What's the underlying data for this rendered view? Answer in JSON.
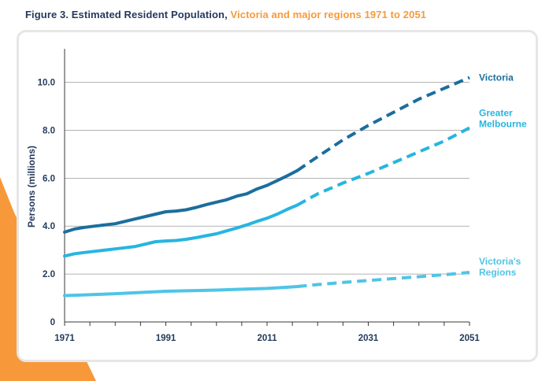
{
  "figure": {
    "title_prefix": "Figure 3. Estimated Resident Population, ",
    "title_highlight": "Victoria and major regions 1971 to 2051"
  },
  "colors": {
    "title_dark": "#243b5c",
    "title_orange": "#f79a3b",
    "victoria": "#1b6e9e",
    "greater_melbourne": "#27b5e0",
    "victorias_regions": "#4fc4e6",
    "grid": "#9a9a9a"
  },
  "chart_data": {
    "type": "line",
    "title": "Estimated Resident Population, Victoria and major regions 1971 to 2051",
    "xlabel": "",
    "ylabel": "Persons (millions)",
    "xlim": [
      1971,
      2051
    ],
    "ylim": [
      0,
      11.4
    ],
    "x_tick_values": [
      1971,
      1991,
      2011,
      2031,
      2051
    ],
    "x_tick_labels": [
      "1971",
      "1991",
      "2011",
      "2031",
      "2051"
    ],
    "y_tick_values": [
      0,
      2,
      4,
      6,
      8,
      10
    ],
    "y_tick_labels": [
      "0",
      "2.0",
      "4.0",
      "6.0",
      "8.0",
      "10.0"
    ],
    "grid": true,
    "legend": "labels at line ends (right)",
    "series": [
      {
        "key": "victoria",
        "name_lines": [
          "Victoria"
        ],
        "estimated": [
          [
            1971,
            3.75
          ],
          [
            1973,
            3.88
          ],
          [
            1975,
            3.95
          ],
          [
            1977,
            4.0
          ],
          [
            1981,
            4.1
          ],
          [
            1985,
            4.3
          ],
          [
            1989,
            4.5
          ],
          [
            1991,
            4.6
          ],
          [
            1993,
            4.63
          ],
          [
            1995,
            4.68
          ],
          [
            1997,
            4.78
          ],
          [
            1999,
            4.9
          ],
          [
            2001,
            5.0
          ],
          [
            2003,
            5.1
          ],
          [
            2005,
            5.25
          ],
          [
            2007,
            5.35
          ],
          [
            2009,
            5.55
          ],
          [
            2011,
            5.7
          ],
          [
            2013,
            5.9
          ],
          [
            2015,
            6.1
          ],
          [
            2017,
            6.32
          ]
        ],
        "projected": [
          [
            2017,
            6.32
          ],
          [
            2021,
            6.9
          ],
          [
            2026,
            7.6
          ],
          [
            2031,
            8.2
          ],
          [
            2036,
            8.75
          ],
          [
            2041,
            9.3
          ],
          [
            2046,
            9.75
          ],
          [
            2051,
            10.2
          ]
        ]
      },
      {
        "key": "greater_melbourne",
        "name_lines": [
          "Greater",
          "Melbourne"
        ],
        "estimated": [
          [
            1971,
            2.75
          ],
          [
            1973,
            2.85
          ],
          [
            1975,
            2.9
          ],
          [
            1977,
            2.95
          ],
          [
            1981,
            3.05
          ],
          [
            1985,
            3.15
          ],
          [
            1989,
            3.35
          ],
          [
            1991,
            3.38
          ],
          [
            1993,
            3.4
          ],
          [
            1995,
            3.45
          ],
          [
            1997,
            3.52
          ],
          [
            1999,
            3.6
          ],
          [
            2001,
            3.68
          ],
          [
            2003,
            3.8
          ],
          [
            2005,
            3.92
          ],
          [
            2007,
            4.05
          ],
          [
            2009,
            4.2
          ],
          [
            2011,
            4.33
          ],
          [
            2013,
            4.5
          ],
          [
            2015,
            4.7
          ],
          [
            2017,
            4.88
          ]
        ],
        "projected": [
          [
            2017,
            4.88
          ],
          [
            2021,
            5.35
          ],
          [
            2026,
            5.8
          ],
          [
            2031,
            6.2
          ],
          [
            2036,
            6.65
          ],
          [
            2041,
            7.1
          ],
          [
            2046,
            7.55
          ],
          [
            2051,
            8.1
          ]
        ]
      },
      {
        "key": "victorias_regions",
        "name_lines": [
          "Victoria's",
          "Regions"
        ],
        "estimated": [
          [
            1971,
            1.1
          ],
          [
            1975,
            1.13
          ],
          [
            1981,
            1.18
          ],
          [
            1985,
            1.22
          ],
          [
            1991,
            1.28
          ],
          [
            1995,
            1.3
          ],
          [
            2001,
            1.33
          ],
          [
            2005,
            1.36
          ],
          [
            2011,
            1.4
          ],
          [
            2015,
            1.45
          ],
          [
            2017,
            1.48
          ]
        ],
        "projected": [
          [
            2017,
            1.48
          ],
          [
            2021,
            1.56
          ],
          [
            2026,
            1.65
          ],
          [
            2031,
            1.73
          ],
          [
            2036,
            1.81
          ],
          [
            2041,
            1.89
          ],
          [
            2046,
            1.97
          ],
          [
            2051,
            2.07
          ]
        ]
      }
    ]
  }
}
